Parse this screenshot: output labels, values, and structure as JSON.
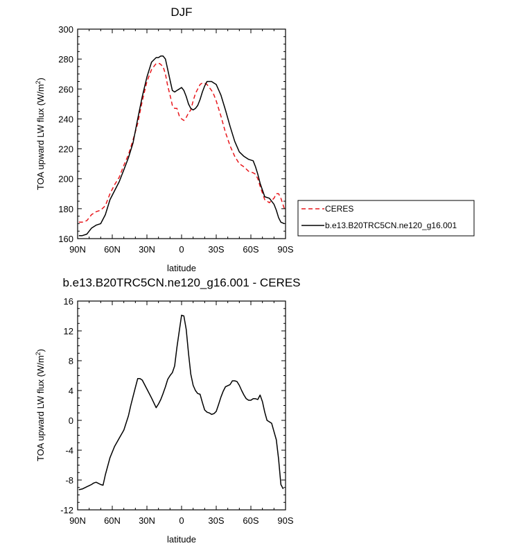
{
  "chart_data": [
    {
      "type": "line",
      "title": "DJF",
      "xlabel": "latitude",
      "ylabel": "TOA upward LW flux (W/m",
      "ylabel_sup": "2",
      "ylabel_close": ")",
      "xlim": [
        90,
        -90
      ],
      "ylim": [
        160,
        300
      ],
      "xticks": [
        90,
        60,
        30,
        0,
        -30,
        -60,
        -90
      ],
      "xtick_labels": [
        "90N",
        "60N",
        "30N",
        "0",
        "30S",
        "60S",
        "90S"
      ],
      "yticks": [
        160,
        180,
        200,
        220,
        240,
        260,
        280,
        300
      ],
      "ytick_labels": [
        "160",
        "180",
        "200",
        "220",
        "240",
        "260",
        "280",
        "300"
      ],
      "legend": {
        "position": "right",
        "entries": [
          "CERES",
          "b.e13.B20TRC5CN.ne120_g16.001"
        ]
      },
      "series": [
        {
          "name": "CERES",
          "color": "#e8161b",
          "dash": "dashed",
          "x": [
            89,
            86,
            82,
            78,
            74,
            70,
            66,
            62,
            58,
            54,
            50,
            46,
            42,
            38,
            34,
            30,
            26,
            22,
            19,
            16,
            14,
            12,
            10,
            8,
            6,
            4,
            2,
            0,
            -2,
            -4,
            -6,
            -8,
            -10,
            -12,
            -14,
            -16,
            -18,
            -20,
            -22,
            -24,
            -26,
            -28,
            -30,
            -34,
            -38,
            -42,
            -46,
            -50,
            -54,
            -58,
            -62,
            -64,
            -66,
            -68,
            -72,
            -76,
            -80,
            -82,
            -84,
            -86,
            -89
          ],
          "y": [
            171,
            171,
            172,
            176,
            178,
            179,
            182,
            190,
            196,
            201,
            209,
            216,
            226,
            237,
            252,
            265,
            273,
            277,
            277,
            275,
            270,
            262,
            256,
            249,
            247,
            247,
            242,
            240,
            239,
            241,
            244,
            246,
            252,
            257,
            260,
            263,
            264,
            264,
            263,
            261,
            259,
            256,
            252,
            242,
            231,
            222,
            215,
            210,
            208,
            205,
            204,
            203,
            200,
            195,
            186,
            184,
            187,
            190,
            190,
            187,
            180
          ]
        },
        {
          "name": "b.e13.B20TRC5CN.ne120_g16.001",
          "color": "#000000",
          "dash": "solid",
          "x": [
            89,
            86,
            82,
            78,
            74,
            70,
            66,
            62,
            58,
            54,
            50,
            46,
            42,
            38,
            34,
            30,
            26,
            22,
            20,
            18,
            16,
            14,
            12,
            10,
            8,
            6,
            4,
            2,
            0,
            -2,
            -4,
            -6,
            -8,
            -10,
            -12,
            -14,
            -16,
            -18,
            -20,
            -22,
            -24,
            -26,
            -28,
            -30,
            -34,
            -38,
            -42,
            -46,
            -50,
            -54,
            -58,
            -62,
            -64,
            -66,
            -68,
            -72,
            -76,
            -80,
            -82,
            -84,
            -86,
            -89
          ],
          "y": [
            162,
            162,
            163,
            167,
            169,
            170,
            176,
            186,
            192,
            198,
            206,
            214,
            224,
            240,
            255,
            268,
            278,
            281,
            281,
            282,
            282,
            280,
            273,
            266,
            259,
            258,
            259,
            260,
            261,
            259,
            255,
            250,
            247,
            246,
            247,
            249,
            253,
            258,
            262,
            265,
            265,
            265,
            264,
            263,
            256,
            246,
            235,
            225,
            218,
            215,
            213,
            212,
            208,
            203,
            197,
            188,
            187,
            183,
            179,
            174,
            171,
            170
          ]
        }
      ]
    },
    {
      "type": "line",
      "title": "b.e13.B20TRC5CN.ne120_g16.001 - CERES",
      "xlabel": "latitude",
      "ylabel": "TOA upward LW flux (W/m",
      "ylabel_sup": "2",
      "ylabel_close": ")",
      "xlim": [
        90,
        -90
      ],
      "ylim": [
        -12,
        16
      ],
      "xticks": [
        90,
        60,
        30,
        0,
        -30,
        -60,
        -90
      ],
      "xtick_labels": [
        "90N",
        "60N",
        "30N",
        "0",
        "30S",
        "60S",
        "90S"
      ],
      "yticks": [
        -12,
        -8,
        -4,
        0,
        4,
        8,
        12,
        16
      ],
      "ytick_labels": [
        "-12",
        "-8",
        "-4",
        "0",
        "4",
        "8",
        "12",
        "16"
      ],
      "series": [
        {
          "color": "#000000",
          "dash": "solid",
          "x": [
            89,
            86,
            82,
            78,
            76,
            74,
            70,
            68,
            66,
            62,
            58,
            54,
            50,
            46,
            44,
            42,
            40,
            38,
            36,
            34,
            30,
            26,
            22,
            20,
            18,
            16,
            14,
            12,
            10,
            8,
            6,
            4,
            2,
            0,
            -2,
            -4,
            -6,
            -8,
            -10,
            -12,
            -14,
            -16,
            -18,
            -20,
            -22,
            -24,
            -26,
            -28,
            -30,
            -32,
            -34,
            -36,
            -38,
            -42,
            -44,
            -46,
            -48,
            -50,
            -52,
            -54,
            -56,
            -58,
            -60,
            -62,
            -64,
            -66,
            -68,
            -70,
            -72,
            -74,
            -76,
            -78,
            -80,
            -82,
            -84,
            -86,
            -88
          ],
          "y": [
            -9.3,
            -9.2,
            -8.9,
            -8.6,
            -8.4,
            -8.3,
            -8.6,
            -8.7,
            -7.3,
            -5,
            -3.5,
            -2.4,
            -1.3,
            0.6,
            2,
            3.2,
            4.4,
            5.6,
            5.6,
            5.4,
            4.2,
            3,
            1.7,
            2.2,
            2.8,
            3.6,
            4.5,
            5.5,
            6,
            6.4,
            7.3,
            9.8,
            12,
            14.1,
            14,
            12.2,
            9,
            6.2,
            4.7,
            4,
            3.6,
            3.5,
            2.4,
            1.4,
            1.1,
            1,
            0.8,
            0.9,
            1.2,
            2.1,
            3.1,
            3.9,
            4.5,
            4.8,
            5.3,
            5.3,
            5.2,
            4.7,
            4,
            3.4,
            2.9,
            2.7,
            2.7,
            2.9,
            2.9,
            2.8,
            3.4,
            2.5,
            1.1,
            0,
            -0.2,
            -0.4,
            -1.5,
            -2.6,
            -5.2,
            -8.6,
            -9.2
          ]
        }
      ]
    }
  ]
}
